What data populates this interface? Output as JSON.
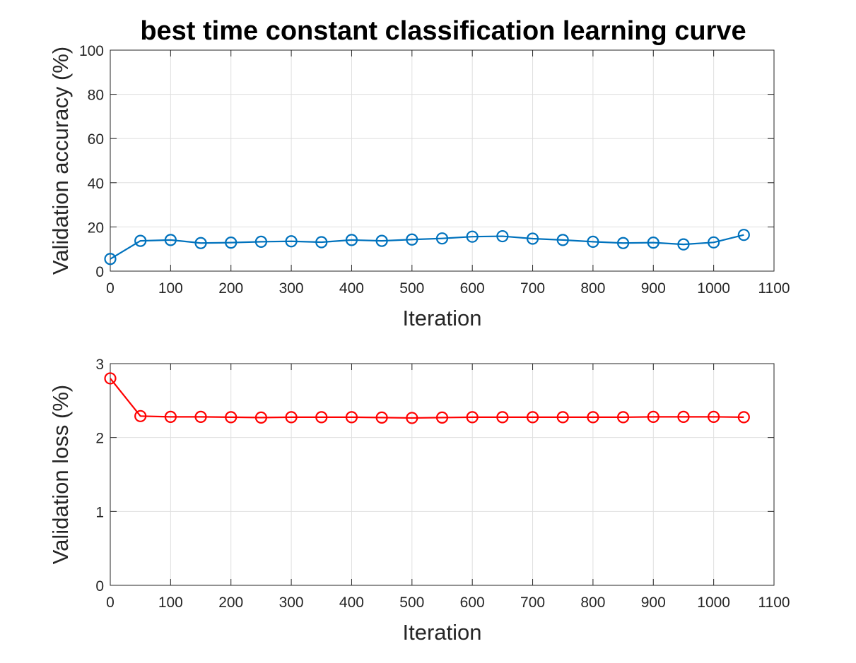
{
  "figure": {
    "title": "best time constant classification learning curve"
  },
  "chart_data": [
    {
      "type": "line",
      "title": "best time constant classification learning curve",
      "xlabel": "Iteration",
      "ylabel": "Validation accuracy (%)",
      "xlim": [
        0,
        1100
      ],
      "ylim": [
        0,
        100
      ],
      "xticks": [
        0,
        100,
        200,
        300,
        400,
        500,
        600,
        700,
        800,
        900,
        1000,
        1100
      ],
      "yticks": [
        0,
        20,
        40,
        60,
        80,
        100
      ],
      "grid": true,
      "marker": "circle",
      "series": [
        {
          "color": "#0072bd",
          "x": [
            0,
            50,
            100,
            150,
            200,
            250,
            300,
            350,
            400,
            450,
            500,
            550,
            600,
            650,
            700,
            750,
            800,
            850,
            900,
            950,
            1000,
            1050
          ],
          "y": [
            5.5,
            13.7,
            14.1,
            12.7,
            12.9,
            13.3,
            13.5,
            13.1,
            14.1,
            13.7,
            14.3,
            14.8,
            15.6,
            15.8,
            14.7,
            14.1,
            13.3,
            12.7,
            12.9,
            12.1,
            13.0,
            16.4
          ]
        }
      ]
    },
    {
      "type": "line",
      "title": "",
      "xlabel": "Iteration",
      "ylabel": "Validation loss (%)",
      "xlim": [
        0,
        1100
      ],
      "ylim": [
        0,
        3
      ],
      "xticks": [
        0,
        100,
        200,
        300,
        400,
        500,
        600,
        700,
        800,
        900,
        1000,
        1100
      ],
      "yticks": [
        0,
        1,
        2,
        3
      ],
      "grid": true,
      "marker": "circle",
      "series": [
        {
          "color": "#ff0000",
          "x": [
            0,
            50,
            100,
            150,
            200,
            250,
            300,
            350,
            400,
            450,
            500,
            550,
            600,
            650,
            700,
            750,
            800,
            850,
            900,
            950,
            1000,
            1050
          ],
          "y": [
            2.8,
            2.29,
            2.28,
            2.28,
            2.275,
            2.27,
            2.275,
            2.275,
            2.275,
            2.27,
            2.265,
            2.27,
            2.275,
            2.275,
            2.275,
            2.275,
            2.275,
            2.275,
            2.28,
            2.28,
            2.28,
            2.275
          ]
        }
      ]
    }
  ]
}
